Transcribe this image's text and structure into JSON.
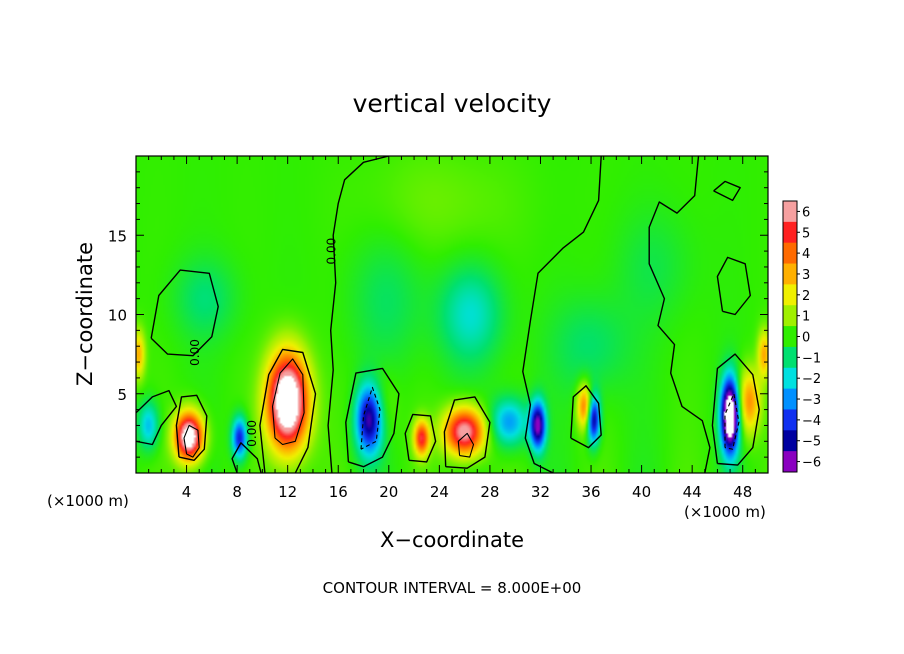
{
  "chart_data": {
    "type": "heatmap",
    "title": "vertical velocity",
    "xlabel": "X−coordinate",
    "ylabel": "Z−coordinate",
    "x_unit_left": "(×1000 m)",
    "x_unit_right": "(×1000 m)",
    "footer": "CONTOUR INTERVAL = 8.000E+00",
    "xlim": [
      0,
      50
    ],
    "ylim": [
      0,
      20
    ],
    "x_ticks": [
      4,
      8,
      12,
      16,
      20,
      24,
      28,
      32,
      36,
      40,
      44,
      48
    ],
    "x_tick_labels": [
      "4",
      "8",
      "12",
      "16",
      "20",
      "24",
      "28",
      "32",
      "36",
      "40",
      "44",
      "48"
    ],
    "y_ticks": [
      5,
      10,
      15
    ],
    "y_tick_labels": [
      "5",
      "10",
      "15"
    ],
    "contour_labels": [
      {
        "text": "0.00",
        "x": 15.8,
        "z": 14.0
      },
      {
        "text": "0.00",
        "x": 5.0,
        "z": 7.6
      },
      {
        "text": "0.00",
        "x": 9.5,
        "z": 2.5
      }
    ],
    "colorbar": {
      "min": -6,
      "max": 6,
      "tick_labels": [
        "6",
        "5",
        "4",
        "3",
        "2",
        "1",
        "0",
        "−1",
        "−2",
        "−3",
        "−4",
        "−5",
        "−6"
      ],
      "colors": [
        "#f6a0a0",
        "#ff2020",
        "#ff6a00",
        "#ffb000",
        "#f0f000",
        "#a0f000",
        "#30ee00",
        "#00e070",
        "#00e0e0",
        "#0090ff",
        "#1030f0",
        "#0000a0",
        "#8a00c0"
      ]
    },
    "features": [
      {
        "kind": "updraft",
        "x": 12.0,
        "z": 4.5,
        "sx": 1.6,
        "sz": 3.0,
        "w": 9.0
      },
      {
        "kind": "updraft",
        "x": 4.2,
        "z": 2.3,
        "sx": 1.1,
        "sz": 1.5,
        "w": 8.0
      },
      {
        "kind": "updraft",
        "x": 26.0,
        "z": 2.6,
        "sx": 1.6,
        "sz": 1.5,
        "w": 6.5
      },
      {
        "kind": "updraft",
        "x": 22.6,
        "z": 2.2,
        "sx": 0.6,
        "sz": 1.1,
        "w": 5.0
      },
      {
        "kind": "updraft",
        "x": 18.7,
        "z": 4.0,
        "sx": 1.3,
        "sz": 2.2,
        "w": 4.0
      },
      {
        "kind": "updraft",
        "x": 35.5,
        "z": 4.2,
        "sx": 0.6,
        "sz": 1.4,
        "w": 4.0
      },
      {
        "kind": "updraft",
        "x": 48.5,
        "z": 4.5,
        "sx": 0.9,
        "sz": 2.0,
        "w": 3.5
      },
      {
        "kind": "updraft",
        "x": 49.7,
        "z": 7.5,
        "sx": 0.5,
        "sz": 1.5,
        "w": 3.0
      },
      {
        "kind": "updraft",
        "x": 0.2,
        "z": 7.5,
        "sx": 0.5,
        "sz": 1.5,
        "w": 3.0
      },
      {
        "kind": "updraft",
        "x": 24.0,
        "z": 17.0,
        "sx": 6.0,
        "sz": 3.5,
        "w": 0.5
      },
      {
        "kind": "downdraft",
        "x": 18.5,
        "z": 3.6,
        "sx": 1.1,
        "sz": 2.2,
        "w": -9.0
      },
      {
        "kind": "downdraft",
        "x": 47.0,
        "z": 3.6,
        "sx": 0.7,
        "sz": 2.3,
        "w": -9.0
      },
      {
        "kind": "downdraft",
        "x": 31.8,
        "z": 3.0,
        "sx": 0.6,
        "sz": 1.5,
        "w": -6.0
      },
      {
        "kind": "downdraft",
        "x": 36.2,
        "z": 3.4,
        "sx": 0.5,
        "sz": 1.5,
        "w": -5.5
      },
      {
        "kind": "downdraft",
        "x": 8.2,
        "z": 2.2,
        "sx": 0.6,
        "sz": 1.3,
        "w": -4.5
      },
      {
        "kind": "downdraft",
        "x": 1.0,
        "z": 3.0,
        "sx": 0.8,
        "sz": 1.5,
        "w": -2.5
      },
      {
        "kind": "downdraft",
        "x": 29.5,
        "z": 3.2,
        "sx": 1.5,
        "sz": 1.5,
        "w": -3.0
      },
      {
        "kind": "downdraft",
        "x": 26.5,
        "z": 10.0,
        "sx": 2.5,
        "sz": 3.0,
        "w": -1.8
      },
      {
        "kind": "downdraft",
        "x": 36.0,
        "z": 8.0,
        "sx": 3.0,
        "sz": 3.0,
        "w": -1.0
      },
      {
        "kind": "downdraft",
        "x": 5.5,
        "z": 11.0,
        "sx": 2.5,
        "sz": 2.5,
        "w": -1.0
      },
      {
        "kind": "downdraft",
        "x": 41.0,
        "z": 13.0,
        "sx": 3.0,
        "sz": 3.5,
        "w": -0.6
      },
      {
        "kind": "downdraft",
        "x": 20.0,
        "z": 11.0,
        "sx": 3.0,
        "sz": 4.0,
        "w": -0.8
      }
    ],
    "contours": [
      {
        "kind": "zero",
        "points": [
          [
            1.2,
            8.5
          ],
          [
            1.8,
            11.2
          ],
          [
            3.5,
            12.8
          ],
          [
            5.8,
            12.6
          ],
          [
            6.5,
            10.5
          ],
          [
            6.0,
            8.6
          ],
          [
            4.5,
            7.4
          ],
          [
            2.5,
            7.5
          ],
          [
            1.2,
            8.5
          ]
        ]
      },
      {
        "kind": "zero",
        "points": [
          [
            15.5,
            0
          ],
          [
            15.2,
            3.0
          ],
          [
            15.6,
            6.5
          ],
          [
            15.4,
            9.0
          ],
          [
            15.8,
            12.0
          ],
          [
            15.6,
            15.0
          ],
          [
            16.0,
            17.0
          ],
          [
            16.5,
            18.5
          ],
          [
            18.0,
            19.6
          ],
          [
            20.0,
            20
          ]
        ]
      },
      {
        "kind": "zero",
        "points": [
          [
            36.8,
            20
          ],
          [
            36.6,
            17.2
          ],
          [
            35.4,
            15.2
          ],
          [
            33.8,
            14.2
          ],
          [
            31.8,
            12.6
          ],
          [
            31.2,
            9.6
          ],
          [
            30.6,
            6.4
          ],
          [
            31.2,
            4.3
          ],
          [
            30.8,
            2.2
          ],
          [
            31.5,
            0.6
          ],
          [
            33.0,
            0
          ]
        ]
      },
      {
        "kind": "zero",
        "points": [
          [
            8.0,
            0
          ],
          [
            7.6,
            0.9
          ],
          [
            8.3,
            1.9
          ],
          [
            9.6,
            0.9
          ],
          [
            9.9,
            0
          ]
        ]
      },
      {
        "kind": "zero",
        "points": [
          [
            0,
            3.8
          ],
          [
            1.3,
            4.8
          ],
          [
            2.6,
            5.2
          ],
          [
            3.2,
            4.2
          ],
          [
            2.0,
            3.0
          ],
          [
            1.3,
            1.8
          ],
          [
            0,
            2.0
          ]
        ]
      },
      {
        "kind": "zero",
        "points": [
          [
            10.2,
            0
          ],
          [
            9.8,
            3.0
          ],
          [
            10.5,
            6.2
          ],
          [
            11.6,
            7.8
          ],
          [
            13.2,
            7.6
          ],
          [
            14.2,
            5.0
          ],
          [
            13.6,
            1.6
          ],
          [
            12.6,
            0
          ]
        ]
      },
      {
        "kind": "zero",
        "points": [
          [
            16.8,
            0.7
          ],
          [
            16.6,
            3.2
          ],
          [
            17.4,
            6.3
          ],
          [
            19.5,
            6.6
          ],
          [
            20.8,
            5.0
          ],
          [
            20.4,
            2.5
          ],
          [
            19.5,
            1.0
          ],
          [
            18.0,
            0.4
          ],
          [
            16.8,
            0.7
          ]
        ]
      },
      {
        "kind": "zero",
        "points": [
          [
            24.5,
            0.4
          ],
          [
            24.4,
            2.6
          ],
          [
            25.2,
            4.6
          ],
          [
            26.8,
            4.8
          ],
          [
            28.0,
            3.2
          ],
          [
            27.6,
            1.0
          ],
          [
            26.2,
            0.3
          ],
          [
            24.5,
            0.4
          ]
        ]
      },
      {
        "kind": "zero",
        "points": [
          [
            44.5,
            20
          ],
          [
            44.2,
            17.5
          ],
          [
            42.8,
            16.4
          ],
          [
            41.4,
            17.1
          ],
          [
            40.6,
            15.5
          ],
          [
            40.6,
            13.2
          ],
          [
            41.8,
            11.0
          ],
          [
            41.3,
            9.3
          ],
          [
            42.6,
            8.1
          ],
          [
            42.3,
            6.3
          ],
          [
            43.2,
            4.2
          ],
          [
            44.8,
            3.3
          ],
          [
            45.4,
            1.6
          ],
          [
            45.0,
            0
          ]
        ]
      },
      {
        "kind": "zero",
        "points": [
          [
            46.0,
            0.6
          ],
          [
            45.6,
            3.0
          ],
          [
            46.0,
            6.6
          ],
          [
            47.4,
            7.5
          ],
          [
            48.8,
            6.2
          ],
          [
            49.3,
            4.0
          ],
          [
            48.8,
            1.6
          ],
          [
            47.6,
            0.5
          ],
          [
            46.0,
            0.6
          ]
        ]
      },
      {
        "kind": "zero",
        "points": [
          [
            3.4,
            1.0
          ],
          [
            3.2,
            3.0
          ],
          [
            3.6,
            4.8
          ],
          [
            4.8,
            4.9
          ],
          [
            5.6,
            3.6
          ],
          [
            5.4,
            1.5
          ],
          [
            4.6,
            0.8
          ],
          [
            3.4,
            1.0
          ]
        ]
      },
      {
        "kind": "zero",
        "points": [
          [
            21.6,
            0.8
          ],
          [
            21.3,
            2.5
          ],
          [
            21.9,
            3.7
          ],
          [
            23.3,
            3.6
          ],
          [
            23.7,
            2.0
          ],
          [
            23.0,
            0.7
          ],
          [
            21.6,
            0.8
          ]
        ]
      },
      {
        "kind": "zero",
        "points": [
          [
            34.4,
            2.2
          ],
          [
            34.6,
            4.8
          ],
          [
            35.6,
            5.5
          ],
          [
            36.6,
            4.4
          ],
          [
            36.8,
            2.4
          ],
          [
            35.8,
            1.6
          ],
          [
            34.4,
            2.2
          ]
        ]
      },
      {
        "kind": "zero",
        "points": [
          [
            46.4,
            10.2
          ],
          [
            46.0,
            12.4
          ],
          [
            46.8,
            13.6
          ],
          [
            48.2,
            13.2
          ],
          [
            48.6,
            11.2
          ],
          [
            47.4,
            10.0
          ],
          [
            46.4,
            10.2
          ]
        ]
      },
      {
        "kind": "zero",
        "points": [
          [
            45.7,
            17.8
          ],
          [
            46.6,
            18.4
          ],
          [
            47.8,
            18.0
          ],
          [
            47.2,
            17.2
          ],
          [
            45.7,
            17.8
          ]
        ]
      },
      {
        "kind": "pos8",
        "points": [
          [
            11.0,
            2.2
          ],
          [
            10.8,
            4.2
          ],
          [
            11.4,
            6.3
          ],
          [
            12.4,
            7.2
          ],
          [
            13.2,
            6.2
          ],
          [
            13.3,
            3.8
          ],
          [
            12.6,
            2.0
          ],
          [
            11.6,
            1.8
          ],
          [
            11.0,
            2.2
          ]
        ]
      },
      {
        "kind": "pos8",
        "points": [
          [
            4.0,
            1.2
          ],
          [
            3.8,
            2.2
          ],
          [
            4.2,
            3.0
          ],
          [
            4.9,
            2.7
          ],
          [
            5.0,
            1.6
          ],
          [
            4.5,
            1.0
          ],
          [
            4.0,
            1.2
          ]
        ]
      },
      {
        "kind": "pos8",
        "points": [
          [
            25.6,
            1.1
          ],
          [
            25.5,
            2.0
          ],
          [
            26.2,
            2.5
          ],
          [
            26.7,
            1.8
          ],
          [
            26.4,
            1.0
          ],
          [
            25.6,
            1.1
          ]
        ]
      },
      {
        "kind": "neg8",
        "points": [
          [
            17.8,
            1.5
          ],
          [
            18.0,
            3.6
          ],
          [
            18.7,
            5.4
          ],
          [
            19.3,
            4.0
          ],
          [
            19.0,
            2.0
          ],
          [
            17.8,
            1.5
          ]
        ]
      },
      {
        "kind": "neg8",
        "points": [
          [
            46.6,
            1.6
          ],
          [
            46.6,
            3.7
          ],
          [
            47.3,
            5.0
          ],
          [
            47.7,
            3.2
          ],
          [
            47.2,
            1.5
          ],
          [
            46.6,
            1.6
          ]
        ]
      }
    ]
  }
}
